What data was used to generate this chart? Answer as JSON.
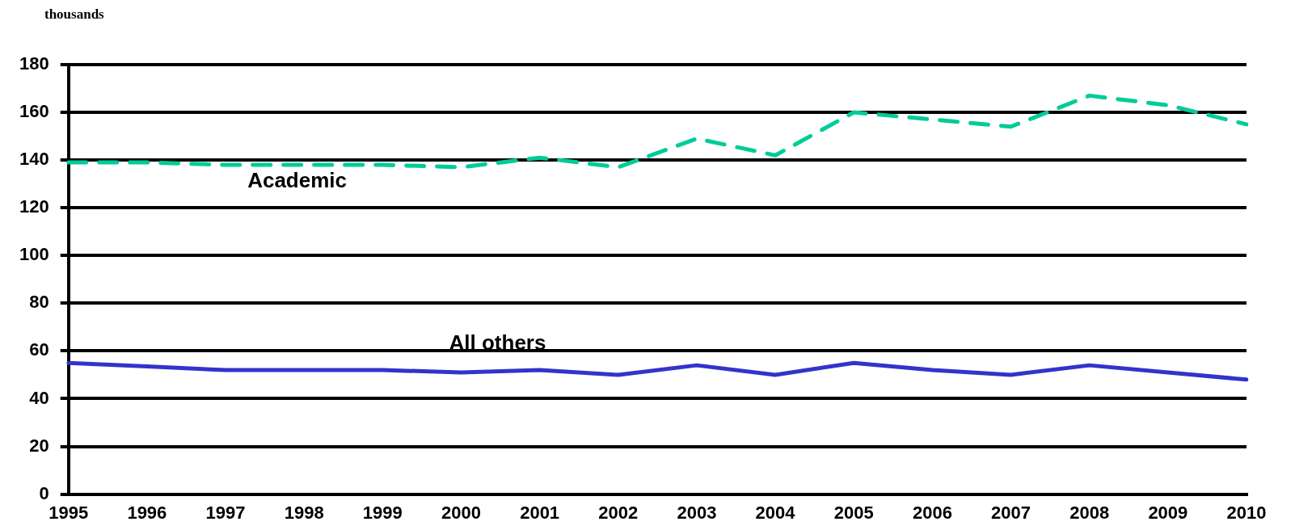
{
  "chart_data": {
    "type": "line",
    "ylabel": "thousands",
    "categories": [
      "1995",
      "1996",
      "1997",
      "1998",
      "1999",
      "2000",
      "2001",
      "2002",
      "2003",
      "2004",
      "2005",
      "2006",
      "2007",
      "2008",
      "2009",
      "2010"
    ],
    "series": [
      {
        "name": "Academic",
        "color": "#00cc99",
        "line_style": "dashed",
        "values": [
          139,
          139,
          138,
          138,
          138,
          137,
          141,
          137,
          149,
          142,
          160,
          157,
          154,
          167,
          163,
          155
        ]
      },
      {
        "name": "All others",
        "color": "#3333cc",
        "line_style": "solid",
        "values": [
          55,
          53.5,
          52,
          52,
          52,
          51,
          52,
          50,
          54,
          50,
          55,
          52,
          50,
          54,
          51,
          48
        ]
      }
    ],
    "ylim": [
      0,
      180
    ],
    "yticks": [
      0,
      20,
      40,
      60,
      80,
      100,
      120,
      140,
      160,
      180
    ],
    "grid": "y",
    "legend": false,
    "marker": "none"
  }
}
